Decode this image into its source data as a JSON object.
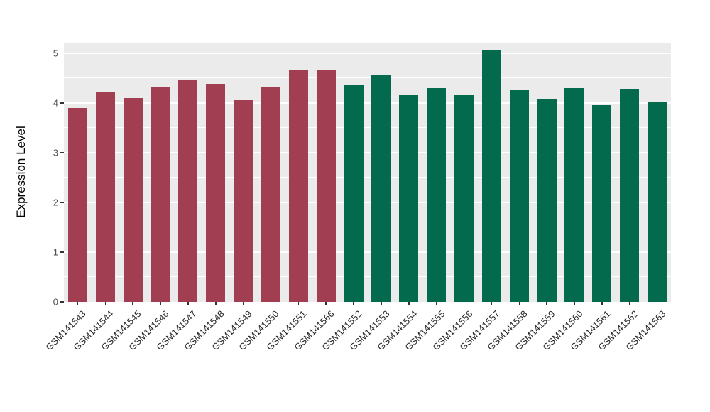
{
  "chart_data": {
    "type": "bar",
    "title": "",
    "xlabel": "",
    "ylabel": "Expression Level",
    "ylim": [
      0,
      5.21
    ],
    "yticks": [
      0,
      1,
      2,
      3,
      4,
      5
    ],
    "minor_grid_step": 0.5,
    "grid": "on",
    "legend_position": "none",
    "plot_bg_color": "#EBEBEB",
    "grid_color": "#FFFFFF",
    "categories": [
      "GSM141543",
      "GSM141544",
      "GSM141545",
      "GSM141546",
      "GSM141547",
      "GSM141548",
      "GSM141549",
      "GSM141550",
      "GSM141551",
      "GSM141566",
      "GSM141552",
      "GSM141553",
      "GSM141554",
      "GSM141555",
      "GSM141556",
      "GSM141557",
      "GSM141558",
      "GSM141559",
      "GSM141560",
      "GSM141561",
      "GSM141562",
      "GSM141563"
    ],
    "values": [
      3.9,
      4.23,
      4.1,
      4.33,
      4.45,
      4.38,
      4.05,
      4.32,
      4.65,
      4.66,
      4.37,
      4.55,
      4.16,
      4.3,
      4.15,
      5.05,
      4.27,
      4.07,
      4.29,
      3.95,
      4.28,
      4.02
    ],
    "bar_colors": [
      "#A23E52",
      "#A23E52",
      "#A23E52",
      "#A23E52",
      "#A23E52",
      "#A23E52",
      "#A23E52",
      "#A23E52",
      "#A23E52",
      "#A23E52",
      "#046A4D",
      "#046A4D",
      "#046A4D",
      "#046A4D",
      "#046A4D",
      "#046A4D",
      "#046A4D",
      "#046A4D",
      "#046A4D",
      "#046A4D",
      "#046A4D",
      "#046A4D"
    ]
  }
}
